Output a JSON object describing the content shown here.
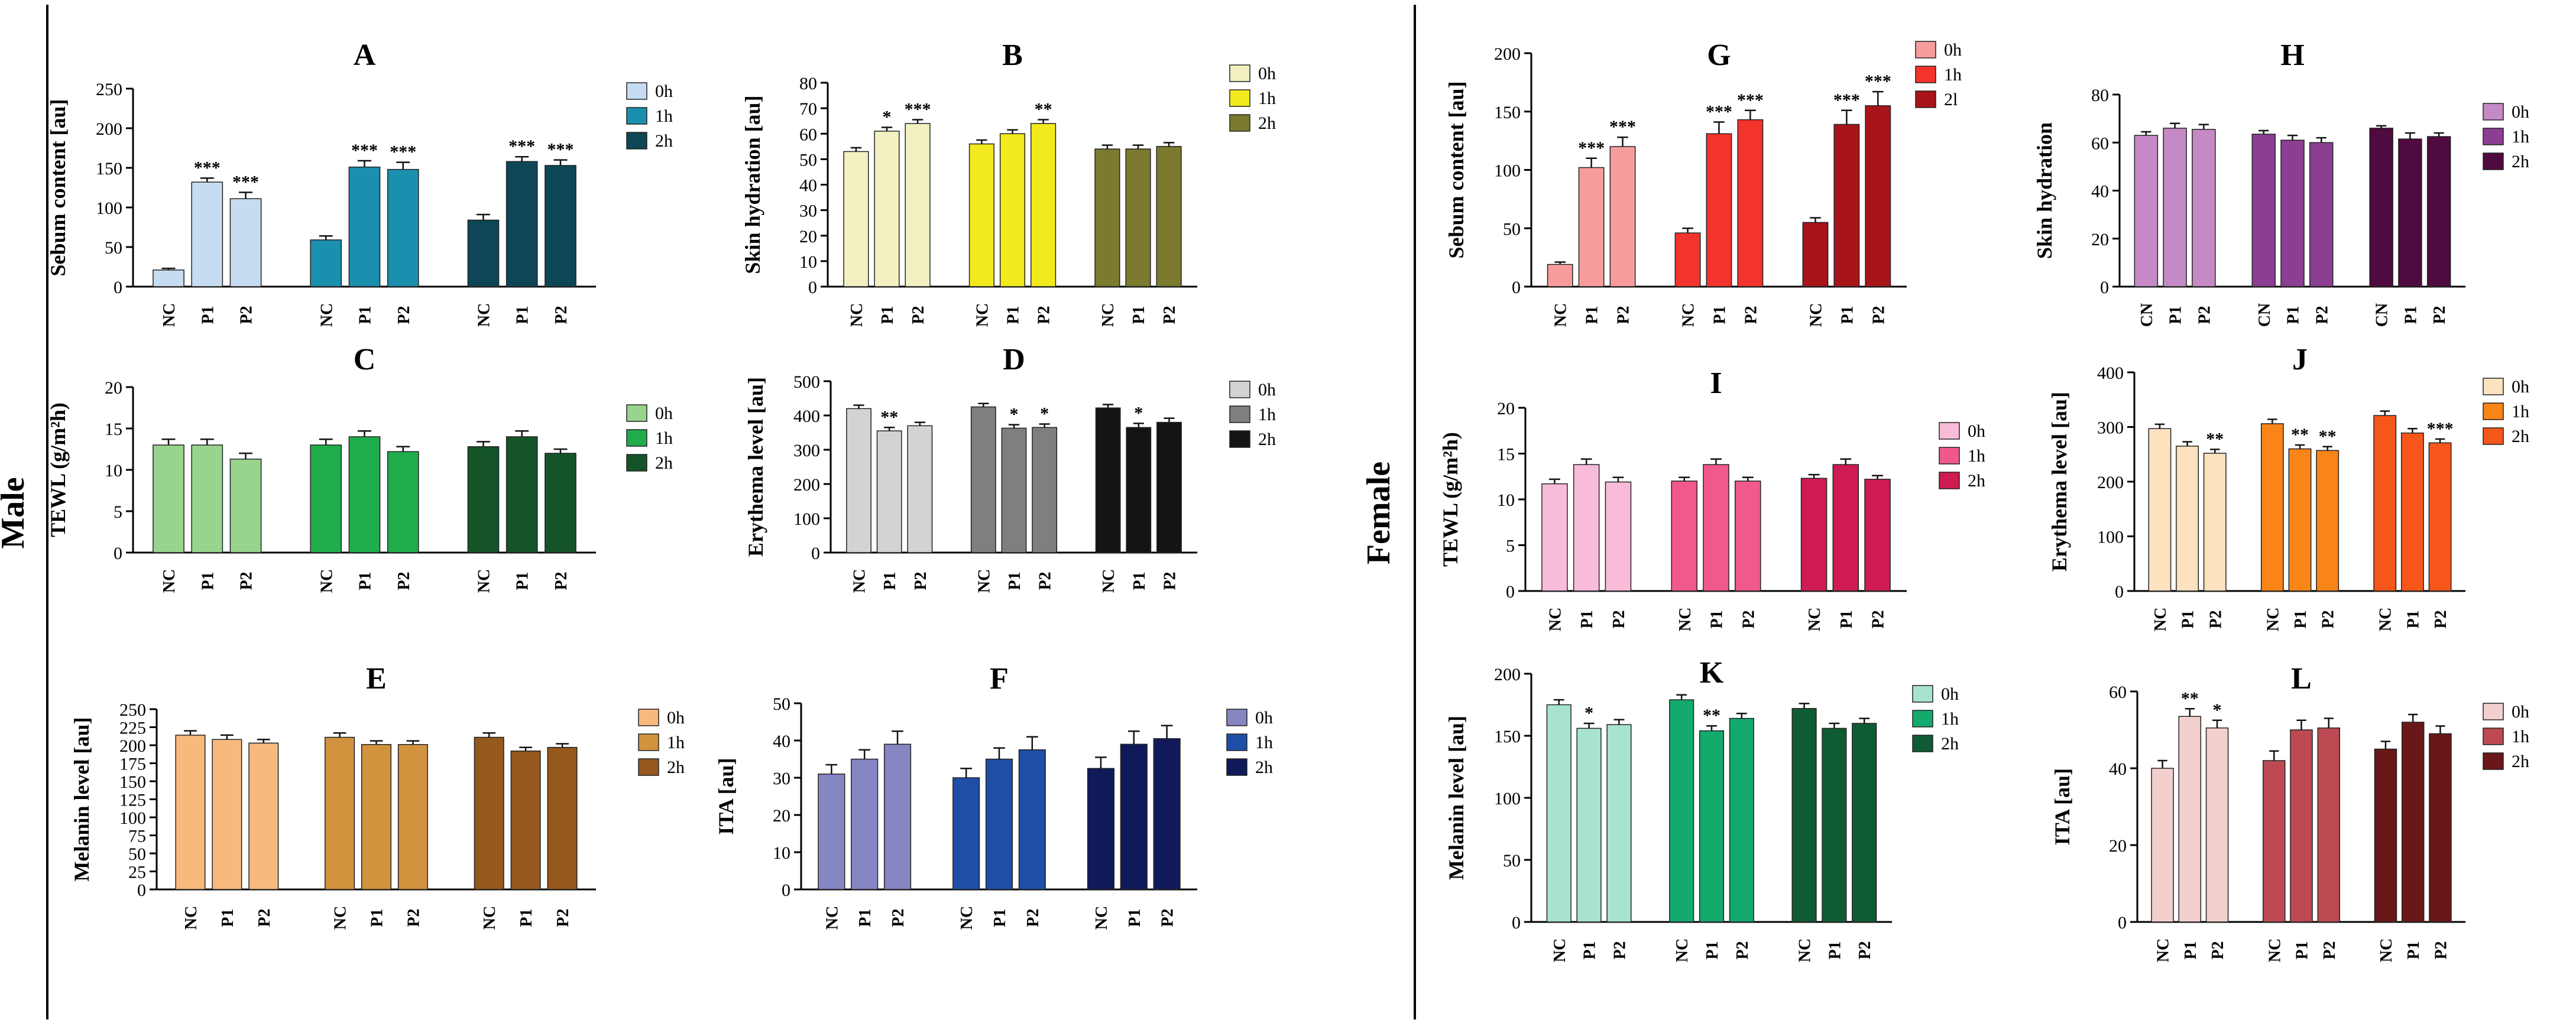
{
  "labels": {
    "male": "Male",
    "female": "Female"
  },
  "chart_data": [
    {
      "letter": "A",
      "type": "bar",
      "ylabel": "Sebum content [au]",
      "ylim": [
        0,
        250
      ],
      "ticks": [
        0,
        50,
        100,
        150,
        200,
        250
      ],
      "groups": [
        [
          "NC",
          "P1",
          "P2"
        ],
        [
          "NC",
          "P1",
          "P2"
        ],
        [
          "NC",
          "P1",
          "P2"
        ]
      ],
      "legend": [
        "0h",
        "1h",
        "2h"
      ],
      "colors": [
        "#c6dcf0",
        "#1b8fae",
        "#0d4656"
      ],
      "series": [
        {
          "name": "0h",
          "values": [
            21,
            132,
            111
          ],
          "errors": [
            2,
            5,
            8
          ],
          "sig": [
            "",
            "***",
            "***"
          ]
        },
        {
          "name": "1h",
          "values": [
            59,
            151,
            148
          ],
          "errors": [
            5,
            8,
            9
          ],
          "sig": [
            "",
            "***",
            "***"
          ]
        },
        {
          "name": "2h",
          "values": [
            84,
            158,
            153
          ],
          "errors": [
            7,
            6,
            7
          ],
          "sig": [
            "",
            "***",
            "***"
          ]
        }
      ]
    },
    {
      "letter": "B",
      "type": "bar",
      "ylabel": "Skin hydration [au]",
      "ylim": [
        0,
        80
      ],
      "ticks": [
        0,
        10,
        20,
        30,
        40,
        50,
        60,
        70,
        80
      ],
      "groups": [
        [
          "NC",
          "P1",
          "P2"
        ],
        [
          "NC",
          "P1",
          "P2"
        ],
        [
          "NC",
          "P1",
          "P2"
        ]
      ],
      "legend": [
        "0h",
        "1h",
        "2h"
      ],
      "colors": [
        "#f3f1c1",
        "#f2ea1c",
        "#7b7a2e"
      ],
      "series": [
        {
          "name": "0h",
          "values": [
            53,
            61,
            64
          ],
          "errors": [
            1.5,
            1.5,
            1.5
          ],
          "sig": [
            "",
            "*",
            "***"
          ]
        },
        {
          "name": "1h",
          "values": [
            56,
            60,
            64
          ],
          "errors": [
            1.5,
            1.5,
            1.5
          ],
          "sig": [
            "",
            "",
            "**"
          ]
        },
        {
          "name": "2h",
          "values": [
            54,
            54,
            55
          ],
          "errors": [
            1.5,
            1.5,
            1.5
          ],
          "sig": [
            "",
            "",
            ""
          ]
        }
      ]
    },
    {
      "letter": "C",
      "type": "bar",
      "ylabel": "TEWL (g/m²h)",
      "ylim": [
        0,
        20
      ],
      "ticks": [
        0,
        5,
        10,
        15,
        20
      ],
      "groups": [
        [
          "NC",
          "P1",
          "P2"
        ],
        [
          "NC",
          "P1",
          "P2"
        ],
        [
          "NC",
          "P1",
          "P2"
        ]
      ],
      "legend": [
        "0h",
        "1h",
        "2h"
      ],
      "colors": [
        "#98d48e",
        "#1fad4b",
        "#145428"
      ],
      "series": [
        {
          "name": "0h",
          "values": [
            13,
            13,
            11.3
          ],
          "errors": [
            0.7,
            0.7,
            0.7
          ],
          "sig": [
            "",
            "",
            ""
          ]
        },
        {
          "name": "1h",
          "values": [
            13,
            14,
            12.2
          ],
          "errors": [
            0.7,
            0.7,
            0.6
          ],
          "sig": [
            "",
            "",
            ""
          ]
        },
        {
          "name": "2h",
          "values": [
            12.8,
            14,
            12
          ],
          "errors": [
            0.6,
            0.7,
            0.5
          ],
          "sig": [
            "",
            "",
            ""
          ]
        }
      ]
    },
    {
      "letter": "D",
      "type": "bar",
      "ylabel": "Erythema level [au]",
      "ylim": [
        0,
        500
      ],
      "ticks": [
        0,
        100,
        200,
        300,
        400,
        500
      ],
      "groups": [
        [
          "NC",
          "P1",
          "P2"
        ],
        [
          "NC",
          "P1",
          "P2"
        ],
        [
          "NC",
          "P1",
          "P2"
        ]
      ],
      "legend": [
        "0h",
        "1h",
        "2h"
      ],
      "colors": [
        "#d3d3d3",
        "#7f7f7f",
        "#141414"
      ],
      "series": [
        {
          "name": "0h",
          "values": [
            420,
            355,
            370
          ],
          "errors": [
            10,
            10,
            10
          ],
          "sig": [
            "",
            "**",
            ""
          ]
        },
        {
          "name": "1h",
          "values": [
            425,
            363,
            365
          ],
          "errors": [
            10,
            10,
            10
          ],
          "sig": [
            "",
            "*",
            "*"
          ]
        },
        {
          "name": "2h",
          "values": [
            422,
            365,
            380
          ],
          "errors": [
            10,
            12,
            12
          ],
          "sig": [
            "",
            "*",
            ""
          ]
        }
      ]
    },
    {
      "letter": "E",
      "type": "bar",
      "ylabel": "Melanin level [au]",
      "ylim": [
        0,
        250
      ],
      "ticks": [
        0,
        25,
        50,
        75,
        100,
        125,
        150,
        175,
        200,
        225,
        250
      ],
      "groups": [
        [
          "NC",
          "P1",
          "P2"
        ],
        [
          "NC",
          "P1",
          "P2"
        ],
        [
          "NC",
          "P1",
          "P2"
        ]
      ],
      "legend": [
        "0h",
        "1h",
        "2h"
      ],
      "colors": [
        "#f8b97d",
        "#d2933f",
        "#95581d"
      ],
      "series": [
        {
          "name": "0h",
          "values": [
            214,
            208,
            203
          ],
          "errors": [
            6,
            6,
            5
          ],
          "sig": [
            "",
            "",
            ""
          ]
        },
        {
          "name": "1h",
          "values": [
            211,
            201,
            201
          ],
          "errors": [
            6,
            5,
            5
          ],
          "sig": [
            "",
            "",
            ""
          ]
        },
        {
          "name": "2h",
          "values": [
            211,
            192,
            197
          ],
          "errors": [
            6,
            5,
            5
          ],
          "sig": [
            "",
            "",
            ""
          ]
        }
      ]
    },
    {
      "letter": "F",
      "type": "bar",
      "ylabel": "ITA [au]",
      "ylim": [
        0,
        50
      ],
      "ticks": [
        0,
        10,
        20,
        30,
        40,
        50
      ],
      "groups": [
        [
          "NC",
          "P1",
          "P2"
        ],
        [
          "NC",
          "P1",
          "P2"
        ],
        [
          "NC",
          "P1",
          "P2"
        ]
      ],
      "legend": [
        "0h",
        "1h",
        "2h"
      ],
      "colors": [
        "#8686c3",
        "#1f4ea7",
        "#101a5a"
      ],
      "series": [
        {
          "name": "0h",
          "values": [
            31,
            35,
            39
          ],
          "errors": [
            2.5,
            2.5,
            3.5
          ],
          "sig": [
            "",
            "",
            ""
          ]
        },
        {
          "name": "1h",
          "values": [
            30,
            35,
            37.5
          ],
          "errors": [
            2.5,
            3,
            3.5
          ],
          "sig": [
            "",
            "",
            ""
          ]
        },
        {
          "name": "2h",
          "values": [
            32.5,
            39,
            40.5
          ],
          "errors": [
            3,
            3.5,
            3.5
          ],
          "sig": [
            "",
            "",
            ""
          ]
        }
      ]
    },
    {
      "letter": "G",
      "type": "bar",
      "ylabel": "Sebum content [au]",
      "ylim": [
        0,
        200
      ],
      "ticks": [
        0,
        50,
        100,
        150,
        200
      ],
      "groups": [
        [
          "NC",
          "P1",
          "P2"
        ],
        [
          "NC",
          "P1",
          "P2"
        ],
        [
          "NC",
          "P1",
          "P2"
        ]
      ],
      "legend": [
        "0h",
        "1h",
        "2l"
      ],
      "colors": [
        "#f79c9c",
        "#f3342c",
        "#a8141a"
      ],
      "series": [
        {
          "name": "0h",
          "values": [
            19,
            102,
            120
          ],
          "errors": [
            2,
            8,
            8
          ],
          "sig": [
            "",
            "***",
            "***"
          ]
        },
        {
          "name": "1h",
          "values": [
            46,
            131,
            143
          ],
          "errors": [
            4,
            10,
            8
          ],
          "sig": [
            "",
            "***",
            "***"
          ]
        },
        {
          "name": "2l",
          "values": [
            55,
            139,
            155
          ],
          "errors": [
            4,
            12,
            12
          ],
          "sig": [
            "",
            "***",
            "***"
          ]
        }
      ]
    },
    {
      "letter": "H",
      "type": "bar",
      "ylabel": "Skin hydration",
      "ylim": [
        0,
        80
      ],
      "ticks": [
        0,
        20,
        40,
        60,
        80
      ],
      "groups": [
        [
          "CN",
          "P1",
          "P2"
        ],
        [
          "CN",
          "P1",
          "P2"
        ],
        [
          "CN",
          "P1",
          "P2"
        ]
      ],
      "legend": [
        "0h",
        "1h",
        "2h"
      ],
      "colors": [
        "#c58ac5",
        "#8b3e92",
        "#4f0a3f"
      ],
      "series": [
        {
          "name": "0h",
          "values": [
            63,
            66,
            65.5
          ],
          "errors": [
            1.5,
            2,
            2
          ],
          "sig": [
            "",
            "",
            ""
          ]
        },
        {
          "name": "1h",
          "values": [
            63.5,
            61,
            60
          ],
          "errors": [
            1.5,
            2,
            2
          ],
          "sig": [
            "",
            "",
            ""
          ]
        },
        {
          "name": "2h",
          "values": [
            66,
            61.5,
            62.5
          ],
          "errors": [
            1,
            2.5,
            1.5
          ],
          "sig": [
            "",
            "",
            ""
          ]
        }
      ]
    },
    {
      "letter": "I",
      "type": "bar",
      "ylabel": "TEWL (g/m²h)",
      "ylim": [
        0,
        20
      ],
      "ticks": [
        0,
        5,
        10,
        15,
        20
      ],
      "groups": [
        [
          "NC",
          "P1",
          "P2"
        ],
        [
          "NC",
          "P1",
          "P2"
        ],
        [
          "NC",
          "P1",
          "P2"
        ]
      ],
      "legend": [
        "0h",
        "1h",
        "2h"
      ],
      "colors": [
        "#f8bcd9",
        "#f0588e",
        "#ce1b52"
      ],
      "series": [
        {
          "name": "0h",
          "values": [
            11.7,
            13.8,
            11.9
          ],
          "errors": [
            0.5,
            0.6,
            0.5
          ],
          "sig": [
            "",
            "",
            ""
          ]
        },
        {
          "name": "1h",
          "values": [
            12,
            13.8,
            12
          ],
          "errors": [
            0.4,
            0.6,
            0.4
          ],
          "sig": [
            "",
            "",
            ""
          ]
        },
        {
          "name": "2h",
          "values": [
            12.3,
            13.8,
            12.2
          ],
          "errors": [
            0.4,
            0.6,
            0.4
          ],
          "sig": [
            "",
            "",
            ""
          ]
        }
      ]
    },
    {
      "letter": "J",
      "type": "bar",
      "ylabel": "Erythema level [au]",
      "ylim": [
        0,
        400
      ],
      "ticks": [
        0,
        100,
        200,
        300,
        400
      ],
      "groups": [
        [
          "NC",
          "P1",
          "P2"
        ],
        [
          "NC",
          "P1",
          "P2"
        ],
        [
          "NC",
          "P1",
          "P2"
        ]
      ],
      "legend": [
        "0h",
        "1h",
        "2h"
      ],
      "colors": [
        "#fde2bf",
        "#f98417",
        "#f7561b"
      ],
      "series": [
        {
          "name": "0h",
          "values": [
            297,
            265,
            252
          ],
          "errors": [
            8,
            8,
            7
          ],
          "sig": [
            "",
            "",
            "**"
          ]
        },
        {
          "name": "1h",
          "values": [
            306,
            260,
            257
          ],
          "errors": [
            8,
            7,
            7
          ],
          "sig": [
            "",
            "**",
            "**"
          ]
        },
        {
          "name": "2h",
          "values": [
            321,
            289,
            271
          ],
          "errors": [
            8,
            8,
            7
          ],
          "sig": [
            "",
            "",
            "***"
          ]
        }
      ]
    },
    {
      "letter": "K",
      "type": "bar",
      "ylabel": "Melanin level [au]",
      "ylim": [
        0,
        200
      ],
      "ticks": [
        0,
        50,
        100,
        150,
        200
      ],
      "groups": [
        [
          "NC",
          "P1",
          "P2"
        ],
        [
          "NC",
          "P1",
          "P2"
        ],
        [
          "NC",
          "P1",
          "P2"
        ]
      ],
      "legend": [
        "0h",
        "1h",
        "2h"
      ],
      "colors": [
        "#a8e3cf",
        "#14aa6d",
        "#0f5c34"
      ],
      "series": [
        {
          "name": "0h",
          "values": [
            175,
            156,
            159
          ],
          "errors": [
            4,
            4,
            4
          ],
          "sig": [
            "",
            "*",
            ""
          ]
        },
        {
          "name": "1h",
          "values": [
            179,
            154,
            164
          ],
          "errors": [
            4,
            4,
            4
          ],
          "sig": [
            "",
            "**",
            ""
          ]
        },
        {
          "name": "2h",
          "values": [
            172,
            156,
            160
          ],
          "errors": [
            4,
            4,
            4
          ],
          "sig": [
            "",
            "",
            ""
          ]
        }
      ]
    },
    {
      "letter": "L",
      "type": "bar",
      "ylabel": "ITA [au]",
      "ylim": [
        0,
        60
      ],
      "ticks": [
        0,
        20,
        40,
        60
      ],
      "groups": [
        [
          "NC",
          "P1",
          "P2"
        ],
        [
          "NC",
          "P1",
          "P2"
        ],
        [
          "NC",
          "P1",
          "P2"
        ]
      ],
      "legend": [
        "0h",
        "1h",
        "2h"
      ],
      "colors": [
        "#f3d0ce",
        "#bd4a53",
        "#691718"
      ],
      "series": [
        {
          "name": "0h",
          "values": [
            40,
            53.5,
            50.5
          ],
          "errors": [
            2,
            2,
            2
          ],
          "sig": [
            "",
            "**",
            "*"
          ]
        },
        {
          "name": "1h",
          "values": [
            42,
            50,
            50.5
          ],
          "errors": [
            2.5,
            2.5,
            2.5
          ],
          "sig": [
            "",
            "",
            ""
          ]
        },
        {
          "name": "2h",
          "values": [
            45,
            52,
            49
          ],
          "errors": [
            2,
            2,
            2
          ],
          "sig": [
            "",
            "",
            ""
          ]
        }
      ]
    }
  ]
}
